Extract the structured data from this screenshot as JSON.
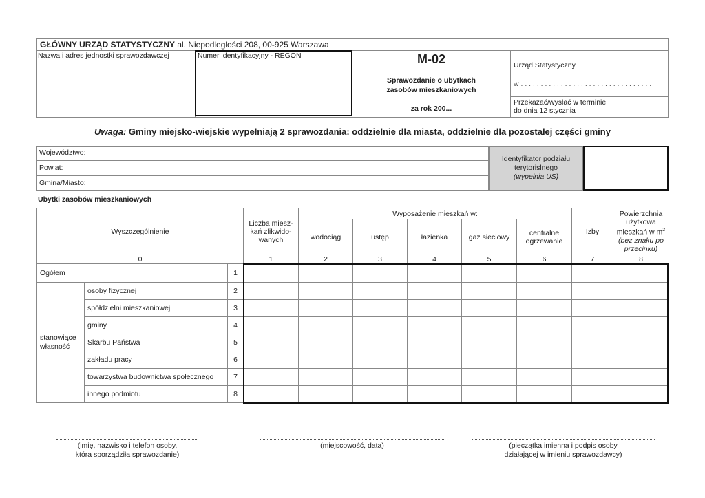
{
  "header": {
    "office_name": "GŁÓWNY URZĄD STATYSTYCZNY",
    "office_address": "al. Niepodległości 208, 00-925 Warszawa",
    "unit_label": "Nazwa i adres  jednostki  sprawozdawczej",
    "regon_label": "Numer identyfikacyjny - REGON",
    "form_code": "M-02",
    "form_title_1": "Sprawozdanie o ubytkach",
    "form_title_2": "zasobów  mieszkaniowych",
    "form_year": "za rok 200...",
    "us_label": "Urząd Statystyczny",
    "us_w": "w  . . . . . . . . . . . . . . . . . . . . . . . . . . . . . . . . .",
    "deadline_1": "Przekazać/wysłać w terminie",
    "deadline_2": "do dnia 12 stycznia"
  },
  "note": {
    "label": "Uwaga:",
    "text": " Gminy miejsko-wiejskie wypełniają 2 sprawozdania: oddzielnie dla miasta, oddzielnie dla pozostałej części gminy"
  },
  "location": {
    "fields": [
      "Województwo:",
      "Powiat:",
      "Gmina/Miasto:"
    ],
    "id_label_1": "Identyfikator podziału",
    "id_label_2": "terytorislnego",
    "id_label_3": "(wypełnia US)"
  },
  "table": {
    "title": "Ubytki zasobów mieszkaniowych",
    "col_spec": "Wyszczególnienie",
    "col_1": "Liczba miesz-kań zlikwido-wanych",
    "group": "Wyposażenie mieszkań w:",
    "equip": [
      "wodociąg",
      "ustęp",
      "łazienka",
      "gaz sieciowy",
      "centralne ogrzewanie"
    ],
    "col_7": "Izby",
    "col_8": "Powierzchnia użytkowa mieszkań w m",
    "col_8_sup": "2",
    "col_8_note": "(bez znaku po przecinku)",
    "col_numbers": [
      "0",
      "1",
      "2",
      "3",
      "4",
      "5",
      "6",
      "7",
      "8"
    ],
    "total_label": "Ogółem",
    "total_num": "1",
    "group_label": "stanowiące własność",
    "rows": [
      {
        "label": "osoby fizycznej",
        "num": "2"
      },
      {
        "label": "spółdzielni mieszkaniowej",
        "num": "3"
      },
      {
        "label": "gminy",
        "num": "4"
      },
      {
        "label": "Skarbu Państwa",
        "num": "5"
      },
      {
        "label": "zakładu pracy",
        "num": "6"
      },
      {
        "label": "towarzystwa budownictwa społecznego",
        "num": "7"
      },
      {
        "label": "innego podmiotu",
        "num": "8"
      }
    ]
  },
  "signatures": [
    {
      "line1": "(imię, nazwisko i telefon osoby,",
      "line2": "która sporządziła sprawozdanie)"
    },
    {
      "line1": "(miejscowość, data)",
      "line2": ""
    },
    {
      "line1": "(pieczątka imienna i podpis osoby",
      "line2": "działającej w imieniu sprawozdawcy)"
    }
  ]
}
